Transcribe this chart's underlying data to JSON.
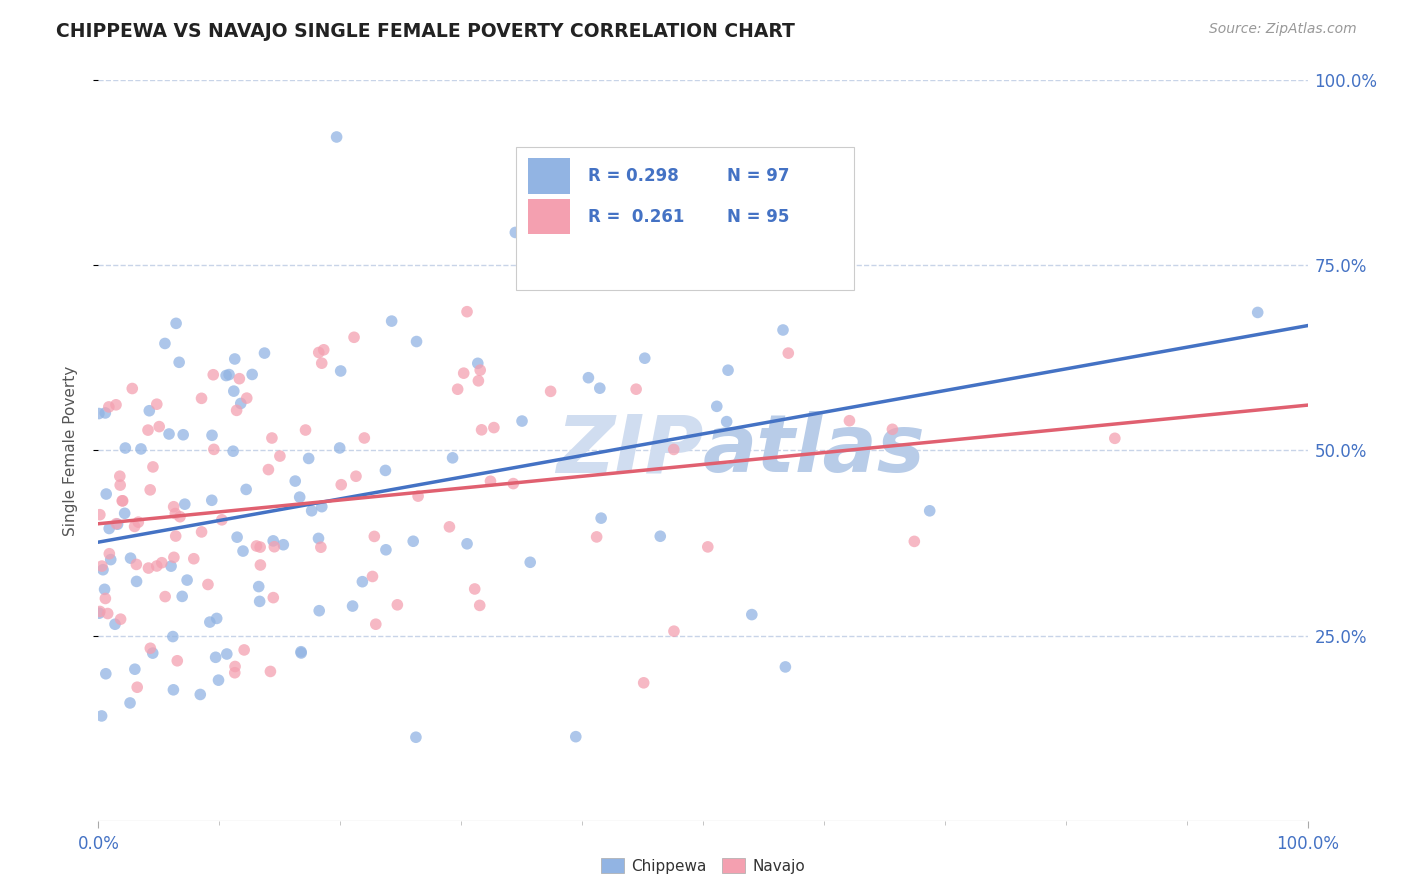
{
  "title": "CHIPPEWA VS NAVAJO SINGLE FEMALE POVERTY CORRELATION CHART",
  "source_text": "Source: ZipAtlas.com",
  "ylabel": "Single Female Poverty",
  "chippewa_R": 0.298,
  "chippewa_N": 97,
  "navajo_R": 0.261,
  "navajo_N": 95,
  "chippewa_color": "#92b4e3",
  "navajo_color": "#f4a0b0",
  "chippewa_line_color": "#4472c4",
  "navajo_line_color": "#e06070",
  "background_color": "#ffffff",
  "watermark_color": "#d0ddf0",
  "xlim": [
    0,
    1
  ],
  "ylim": [
    0,
    1
  ],
  "ytick_labels": [
    "25.0%",
    "50.0%",
    "75.0%",
    "100.0%"
  ],
  "ytick_positions": [
    0.25,
    0.5,
    0.75,
    1.0
  ],
  "grid_color": "#c8d4e8",
  "title_color": "#222222",
  "axis_label_color": "#4472c4",
  "legend_label_color": "#4472c4"
}
